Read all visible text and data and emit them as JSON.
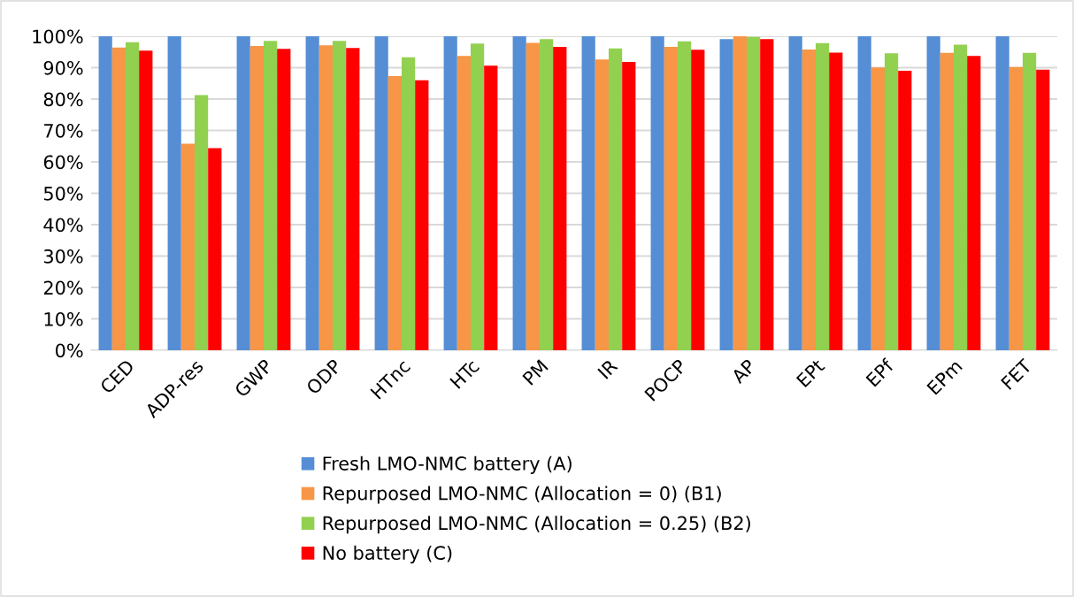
{
  "chart_data": {
    "type": "bar",
    "categories": [
      "CED",
      "ADP-res",
      "GWP",
      "ODP",
      "HTnc",
      "HTc",
      "PM",
      "IR",
      "POCP",
      "AP",
      "EPt",
      "EPf",
      "EPm",
      "FET"
    ],
    "series": [
      {
        "name": "Fresh LMO-NMC battery (A)",
        "color": "#558ed5",
        "values": [
          100,
          100,
          100,
          100,
          100,
          100,
          100,
          100,
          100,
          99.1,
          100,
          100,
          100,
          100
        ]
      },
      {
        "name": "Repurposed LMO-NMC (Allocation = 0) (B1)",
        "color": "#f79646",
        "values": [
          96.4,
          65.8,
          96.9,
          97.1,
          87.3,
          93.7,
          97.9,
          92.6,
          96.6,
          100,
          95.8,
          90.1,
          94.7,
          90.2
        ]
      },
      {
        "name": "Repurposed LMO-NMC (Allocation = 0.25) (B2)",
        "color": "#92d050",
        "values": [
          98.1,
          81.3,
          98.5,
          98.5,
          93.3,
          97.7,
          99.1,
          96.1,
          98.4,
          99.8,
          97.8,
          94.6,
          97.3,
          94.7
        ]
      },
      {
        "name": "No battery (C)",
        "color": "#ff0000",
        "values": [
          95.4,
          64.4,
          96.0,
          96.3,
          86.0,
          90.6,
          96.6,
          91.8,
          95.7,
          99.1,
          94.8,
          89.0,
          93.7,
          89.4
        ]
      }
    ],
    "ylim": [
      0,
      100
    ],
    "yticks": [
      {
        "value": 0,
        "label": "0%"
      },
      {
        "value": 10,
        "label": "10%"
      },
      {
        "value": 20,
        "label": "20%"
      },
      {
        "value": 30,
        "label": "30%"
      },
      {
        "value": 40,
        "label": "40%"
      },
      {
        "value": 50,
        "label": "50%"
      },
      {
        "value": 60,
        "label": "60%"
      },
      {
        "value": 70,
        "label": "70%"
      },
      {
        "value": 80,
        "label": "80%"
      },
      {
        "value": 90,
        "label": "90%"
      },
      {
        "value": 100,
        "label": "100%"
      }
    ],
    "grid": "y",
    "legend": "bottom"
  }
}
